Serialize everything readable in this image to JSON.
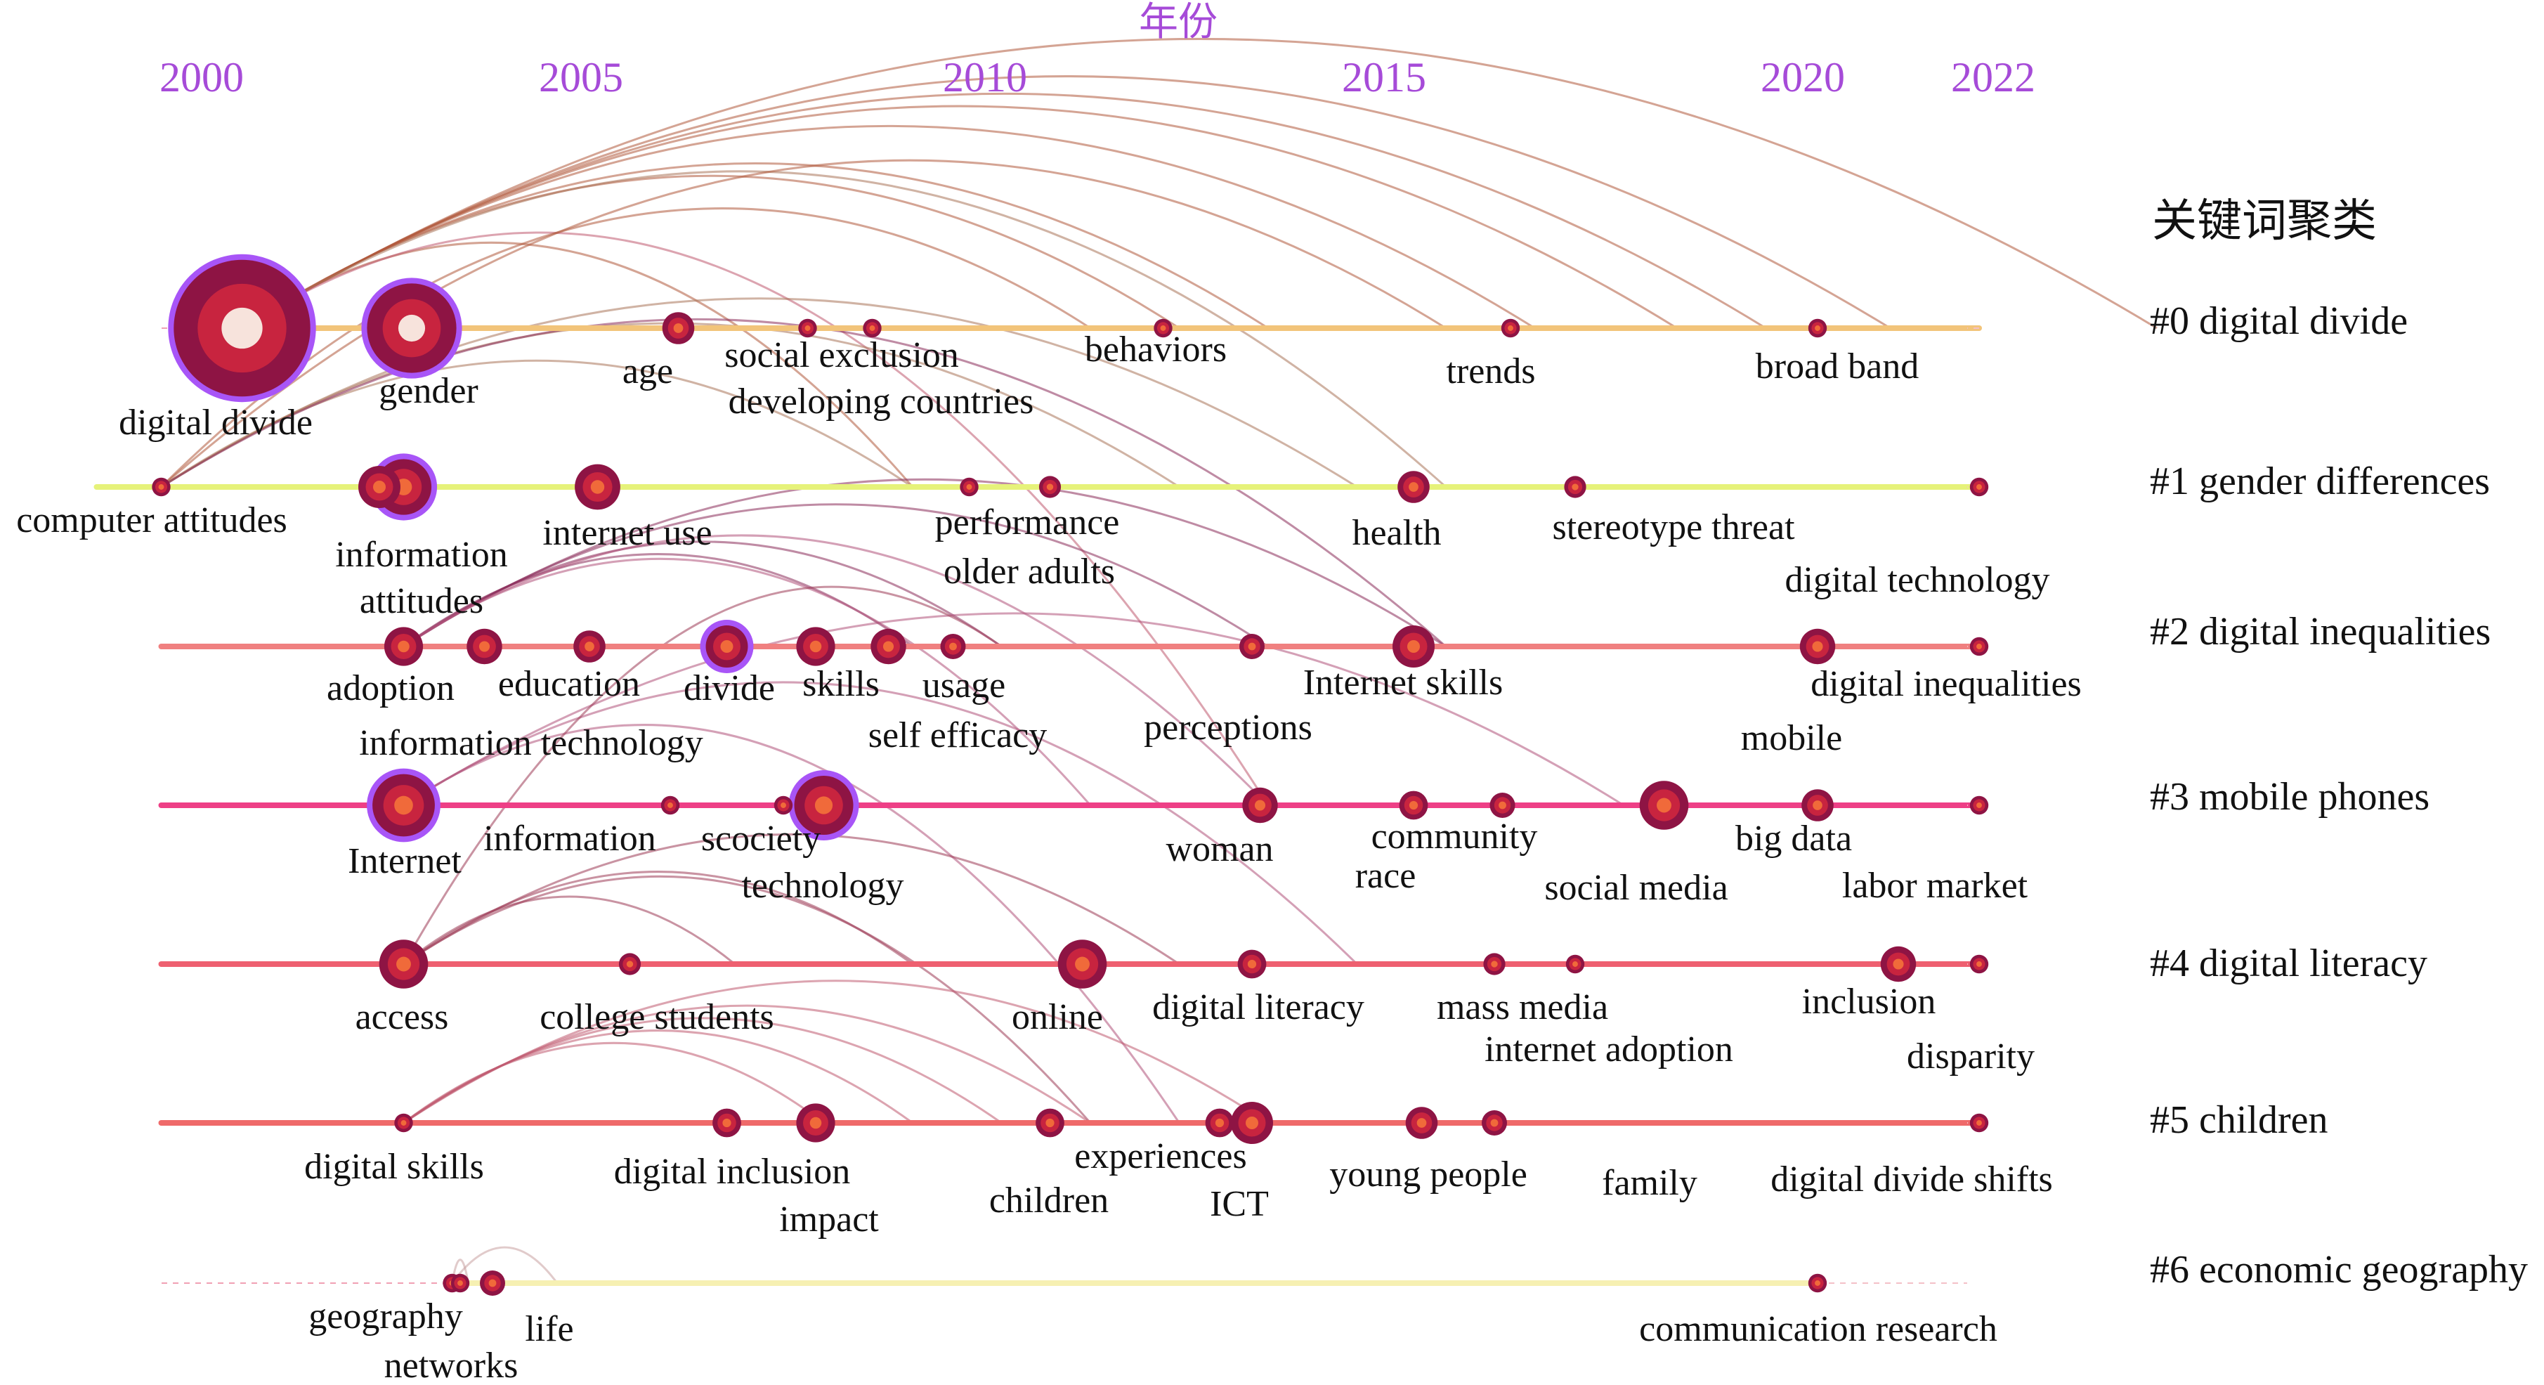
{
  "chart_data": {
    "type": "timeline",
    "title": "年份",
    "years": [
      "2000",
      "2005",
      "2010",
      "2015",
      "2020",
      "2022"
    ],
    "legend_title": "关键词聚类",
    "clusters": [
      {
        "label": "#0 digital divide",
        "start": 2000,
        "end": 2022
      },
      {
        "label": "#1 gender differences",
        "start": 1998.7,
        "end": 2022
      },
      {
        "label": "#2 digital inequalities",
        "start": 1999.5,
        "end": 2022
      },
      {
        "label": "#3 mobile phones",
        "start": 1999.5,
        "end": 2022
      },
      {
        "label": "#4 digital literacy",
        "start": 1999.5,
        "end": 2022
      },
      {
        "label": "#5 children",
        "start": 1999.5,
        "end": 2022
      },
      {
        "label": "#6 economic geography",
        "start": 2003.3,
        "end": 2020
      }
    ],
    "keywords": [
      {
        "text": "digital divide",
        "cluster": 0,
        "year": 2000.5,
        "size": 38,
        "purple": true
      },
      {
        "text": "gender",
        "cluster": 0,
        "year": 2002.6,
        "size": 24,
        "purple": true
      },
      {
        "text": "age",
        "cluster": 0,
        "year": 2005.9,
        "size": 7
      },
      {
        "text": "social exclusion",
        "cluster": 0,
        "year": 2008.3,
        "size": 3
      },
      {
        "text": "developing countries",
        "cluster": 0,
        "year": 2007.5,
        "size": 3
      },
      {
        "text": "behaviors",
        "cluster": 0,
        "year": 2011.9,
        "size": 3
      },
      {
        "text": "trends",
        "cluster": 0,
        "year": 2016.2,
        "size": 3
      },
      {
        "text": "broad band",
        "cluster": 0,
        "year": 2020.0,
        "size": 3
      },
      {
        "text": "computer attitudes",
        "cluster": 1,
        "year": 1999.5,
        "size": 3
      },
      {
        "text": "information",
        "cluster": 1,
        "year": 2002.5,
        "size": 14,
        "purple": true
      },
      {
        "text": "attitudes",
        "cluster": 1,
        "year": 2002.2,
        "size": 10
      },
      {
        "text": "internet use",
        "cluster": 1,
        "year": 2004.9,
        "size": 11
      },
      {
        "text": "performance",
        "cluster": 1,
        "year": 2010.5,
        "size": 4
      },
      {
        "text": "older adults",
        "cluster": 1,
        "year": 2009.5,
        "size": 3
      },
      {
        "text": "health",
        "cluster": 1,
        "year": 2015.0,
        "size": 7
      },
      {
        "text": "stereotype threat",
        "cluster": 1,
        "year": 2017.0,
        "size": 4
      },
      {
        "text": "digital technology",
        "cluster": 1,
        "year": 2022.0,
        "size": 3
      },
      {
        "text": "adoption",
        "cluster": 2,
        "year": 2002.5,
        "size": 9
      },
      {
        "text": "education",
        "cluster": 2,
        "year": 2003.5,
        "size": 8
      },
      {
        "text": "information technology",
        "cluster": 2,
        "year": 2004.8,
        "size": 7
      },
      {
        "text": "divide",
        "cluster": 2,
        "year": 2006.5,
        "size": 10,
        "purple": true
      },
      {
        "text": "skills",
        "cluster": 2,
        "year": 2007.6,
        "size": 9
      },
      {
        "text": "usage",
        "cluster": 2,
        "year": 2009.3,
        "size": 5
      },
      {
        "text": "self efficacy",
        "cluster": 2,
        "year": 2008.5,
        "size": 8
      },
      {
        "text": "perceptions",
        "cluster": 2,
        "year": 2013.0,
        "size": 5
      },
      {
        "text": "Internet skills",
        "cluster": 2,
        "year": 2015.0,
        "size": 10
      },
      {
        "text": "mobile",
        "cluster": 2,
        "year": 2020.0,
        "size": 8
      },
      {
        "text": "digital inequalities",
        "cluster": 2,
        "year": 2022.0,
        "size": 3
      },
      {
        "text": "Internet",
        "cluster": 3,
        "year": 2002.5,
        "size": 16,
        "purple": true
      },
      {
        "text": "information",
        "cluster": 3,
        "year": 2005.8,
        "size": 3
      },
      {
        "text": "scociety",
        "cluster": 3,
        "year": 2007.7,
        "size": 15,
        "purple": true
      },
      {
        "text": "technology",
        "cluster": 3,
        "year": 2007.2,
        "size": 3
      },
      {
        "text": "woman",
        "cluster": 3,
        "year": 2013.1,
        "size": 8
      },
      {
        "text": "community",
        "cluster": 3,
        "year": 2015.0,
        "size": 6
      },
      {
        "text": "race",
        "cluster": 3,
        "year": 2016.1,
        "size": 5
      },
      {
        "text": "social media",
        "cluster": 3,
        "year": 2018.1,
        "size": 12
      },
      {
        "text": "big data",
        "cluster": 3,
        "year": 2020.0,
        "size": 7
      },
      {
        "text": "labor market",
        "cluster": 3,
        "year": 2022.0,
        "size": 3
      },
      {
        "text": "access",
        "cluster": 4,
        "year": 2002.5,
        "size": 12
      },
      {
        "text": "college students",
        "cluster": 4,
        "year": 2005.3,
        "size": 4
      },
      {
        "text": "online",
        "cluster": 4,
        "year": 2010.9,
        "size": 12
      },
      {
        "text": "digital literacy",
        "cluster": 4,
        "year": 2013.0,
        "size": 6
      },
      {
        "text": "mass media",
        "cluster": 4,
        "year": 2016.0,
        "size": 4
      },
      {
        "text": "internet adoption",
        "cluster": 4,
        "year": 2017.0,
        "size": 3
      },
      {
        "text": "inclusion",
        "cluster": 4,
        "year": 2021.0,
        "size": 8
      },
      {
        "text": "disparity",
        "cluster": 4,
        "year": 2022.0,
        "size": 3
      },
      {
        "text": "digital skills",
        "cluster": 5,
        "year": 2002.5,
        "size": 3
      },
      {
        "text": "digital inclusion",
        "cluster": 5,
        "year": 2006.5,
        "size": 6
      },
      {
        "text": "impact",
        "cluster": 5,
        "year": 2007.6,
        "size": 9
      },
      {
        "text": "children",
        "cluster": 5,
        "year": 2010.5,
        "size": 6
      },
      {
        "text": "experiences",
        "cluster": 5,
        "year": 2012.6,
        "size": 6
      },
      {
        "text": "ICT",
        "cluster": 5,
        "year": 2013.0,
        "size": 10
      },
      {
        "text": "young people",
        "cluster": 5,
        "year": 2015.1,
        "size": 7
      },
      {
        "text": "family",
        "cluster": 5,
        "year": 2016.0,
        "size": 5
      },
      {
        "text": "digital divide shifts",
        "cluster": 5,
        "year": 2022.0,
        "size": 3
      },
      {
        "text": "geography",
        "cluster": 6,
        "year": 2003.1,
        "size": 3
      },
      {
        "text": "networks",
        "cluster": 6,
        "year": 2003.2,
        "size": 3
      },
      {
        "text": "life",
        "cluster": 6,
        "year": 2003.6,
        "size": 5
      },
      {
        "text": "communication research",
        "cluster": 6,
        "year": 2020.0,
        "size": 3
      }
    ],
    "links": [
      [
        0,
        1,
        0,
        40
      ],
      [
        0,
        0,
        0,
        55
      ],
      [
        0,
        0,
        0,
        60
      ],
      [
        0,
        0,
        0,
        75
      ],
      [
        0,
        0,
        0,
        83
      ],
      [
        0,
        0,
        0,
        88
      ],
      [
        0,
        0,
        0,
        95
      ],
      [
        0,
        0,
        0,
        110
      ],
      [
        0,
        1,
        1,
        70
      ],
      [
        0,
        3,
        5,
        60
      ],
      [
        1,
        0,
        0,
        50
      ],
      [
        1,
        0,
        0,
        70
      ],
      [
        1,
        1,
        1,
        40
      ],
      [
        1,
        1,
        1,
        55
      ],
      [
        1,
        1,
        1,
        65
      ],
      [
        1,
        2,
        2,
        70
      ],
      [
        2,
        2,
        2,
        45
      ],
      [
        2,
        2,
        2,
        40
      ],
      [
        2,
        2,
        2,
        60
      ],
      [
        2,
        2,
        2,
        70
      ],
      [
        2,
        3,
        3,
        50
      ],
      [
        2,
        3,
        3,
        60
      ],
      [
        3,
        4,
        3,
        65
      ],
      [
        3,
        5,
        3,
        55
      ],
      [
        3,
        3,
        3,
        80
      ],
      [
        4,
        2,
        4,
        45
      ],
      [
        4,
        4,
        4,
        30
      ],
      [
        4,
        4,
        4,
        40
      ],
      [
        4,
        5,
        4,
        50
      ],
      [
        4,
        4,
        4,
        55
      ],
      [
        5,
        5,
        5,
        45
      ],
      [
        5,
        5,
        5,
        35
      ],
      [
        5,
        5,
        5,
        50
      ],
      [
        5,
        5,
        5,
        60
      ],
      [
        5,
        5,
        5,
        40
      ],
      [
        6,
        6,
        6,
        20
      ],
      [
        6,
        6,
        6,
        15
      ]
    ]
  }
}
